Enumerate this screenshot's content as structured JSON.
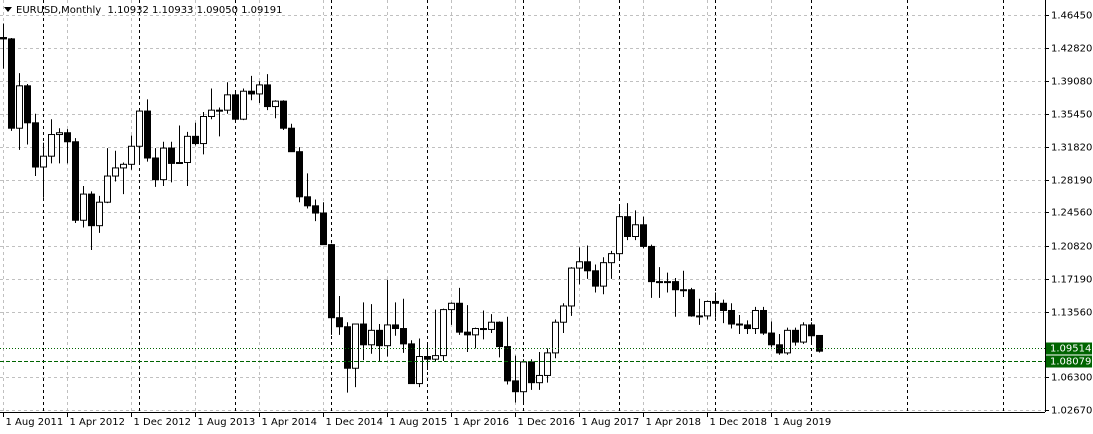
{
  "chart_data": {
    "type": "candlestick",
    "title": "EURUSD,Monthly  1.10932 1.10933 1.09050 1.09191",
    "categories": [
      "1 Aug 2011",
      null,
      null,
      null,
      null,
      null,
      null,
      null,
      "1 Apr 2012",
      null,
      null,
      null,
      null,
      null,
      null,
      null,
      "1 Dec 2012",
      null,
      null,
      null,
      null,
      null,
      null,
      null,
      "1 Aug 2013",
      null,
      null,
      null,
      null,
      null,
      null,
      null,
      "1 Apr 2014",
      null,
      null,
      null,
      null,
      null,
      null,
      null,
      "1 Dec 2014",
      null,
      null,
      null,
      null,
      null,
      null,
      null,
      "1 Aug 2015",
      null,
      null,
      null,
      null,
      null,
      null,
      null,
      "1 Apr 2016",
      null,
      null,
      null,
      null,
      null,
      null,
      null,
      "1 Dec 2016",
      null,
      null,
      null,
      null,
      null,
      null,
      null,
      "1 Aug 2017",
      null,
      null,
      null,
      null,
      null,
      null,
      null,
      "1 Apr 2018",
      null,
      null,
      null,
      null,
      null,
      null,
      null,
      "1 Dec 2018",
      null,
      null,
      null,
      null,
      null,
      null,
      null,
      "1 Aug 2019",
      null,
      null,
      null,
      null,
      null,
      null
    ],
    "open": [
      1.4395,
      1.438,
      1.339,
      1.386,
      1.345,
      1.296,
      1.308,
      1.332,
      1.334,
      1.324,
      1.237,
      1.266,
      1.231,
      1.257,
      1.286,
      1.295,
      1.299,
      1.319,
      1.358,
      1.306,
      1.282,
      1.317,
      1.3,
      1.301,
      1.33,
      1.322,
      1.352,
      1.359,
      1.359,
      1.376,
      1.349,
      1.38,
      1.377,
      1.387,
      1.363,
      1.369,
      1.339,
      1.313,
      1.263,
      1.253,
      1.245,
      1.21,
      1.129,
      1.119,
      1.073,
      1.122,
      1.099,
      1.115,
      1.098,
      1.121,
      1.117,
      1.1,
      1.056,
      1.086,
      1.083,
      1.087,
      1.138,
      1.145,
      1.113,
      1.11,
      1.117,
      1.116,
      1.124,
      1.097,
      1.059,
      1.047,
      1.08,
      1.057,
      1.065,
      1.09,
      1.124,
      1.142,
      1.184,
      1.191,
      1.181,
      1.164,
      1.19,
      1.2,
      1.241,
      1.219,
      1.232,
      1.208,
      1.169,
      1.168,
      1.169,
      1.16,
      1.16,
      1.131,
      1.131,
      1.147,
      1.145,
      1.137,
      1.122,
      1.121,
      1.117,
      1.137,
      1.112,
      1.099,
      1.09,
      1.115,
      1.102,
      1.121,
      1.10932
    ],
    "high": [
      1.455,
      1.439,
      1.4,
      1.388,
      1.355,
      1.323,
      1.349,
      1.339,
      1.338,
      1.328,
      1.275,
      1.269,
      1.264,
      1.317,
      1.314,
      1.301,
      1.331,
      1.36,
      1.371,
      1.317,
      1.324,
      1.324,
      1.342,
      1.335,
      1.345,
      1.357,
      1.383,
      1.362,
      1.39,
      1.378,
      1.383,
      1.397,
      1.391,
      1.399,
      1.37,
      1.37,
      1.344,
      1.318,
      1.289,
      1.26,
      1.257,
      1.211,
      1.153,
      1.124,
      1.122,
      1.146,
      1.144,
      1.122,
      1.171,
      1.146,
      1.15,
      1.104,
      1.106,
      1.099,
      1.138,
      1.139,
      1.146,
      1.162,
      1.143,
      1.118,
      1.137,
      1.133,
      1.125,
      1.13,
      1.087,
      1.083,
      1.083,
      1.091,
      1.095,
      1.127,
      1.145,
      1.185,
      1.207,
      1.209,
      1.188,
      1.196,
      1.203,
      1.254,
      1.256,
      1.248,
      1.241,
      1.21,
      1.185,
      1.179,
      1.173,
      1.181,
      1.162,
      1.15,
      1.148,
      1.157,
      1.149,
      1.145,
      1.132,
      1.126,
      1.141,
      1.141,
      1.125,
      1.111,
      1.118,
      1.118,
      1.124,
      1.124,
      1.10933
    ],
    "low": [
      1.405,
      1.336,
      1.315,
      1.321,
      1.286,
      1.262,
      1.3,
      1.3,
      1.3,
      1.234,
      1.229,
      1.204,
      1.223,
      1.256,
      1.28,
      1.266,
      1.293,
      1.3,
      1.302,
      1.274,
      1.275,
      1.279,
      1.3,
      1.275,
      1.32,
      1.31,
      1.349,
      1.33,
      1.355,
      1.348,
      1.348,
      1.37,
      1.367,
      1.359,
      1.35,
      1.337,
      1.313,
      1.257,
      1.25,
      1.236,
      1.21,
      1.11,
      1.11,
      1.046,
      1.052,
      1.082,
      1.089,
      1.081,
      1.086,
      1.109,
      1.09,
      1.056,
      1.052,
      1.071,
      1.081,
      1.081,
      1.121,
      1.11,
      1.091,
      1.095,
      1.105,
      1.112,
      1.085,
      1.055,
      1.035,
      1.034,
      1.049,
      1.049,
      1.057,
      1.084,
      1.112,
      1.131,
      1.166,
      1.172,
      1.157,
      1.155,
      1.172,
      1.192,
      1.215,
      1.215,
      1.206,
      1.151,
      1.151,
      1.157,
      1.13,
      1.152,
      1.13,
      1.121,
      1.127,
      1.129,
      1.123,
      1.117,
      1.111,
      1.111,
      1.111,
      1.11,
      1.096,
      1.088,
      1.088,
      1.098,
      1.1,
      1.099,
      1.0905
    ],
    "close": [
      1.438,
      1.339,
      1.386,
      1.345,
      1.296,
      1.308,
      1.332,
      1.334,
      1.324,
      1.237,
      1.266,
      1.231,
      1.257,
      1.286,
      1.295,
      1.299,
      1.319,
      1.358,
      1.306,
      1.282,
      1.317,
      1.3,
      1.301,
      1.33,
      1.322,
      1.352,
      1.359,
      1.359,
      1.376,
      1.349,
      1.38,
      1.377,
      1.387,
      1.363,
      1.369,
      1.339,
      1.313,
      1.263,
      1.253,
      1.245,
      1.21,
      1.129,
      1.119,
      1.073,
      1.122,
      1.099,
      1.115,
      1.098,
      1.121,
      1.117,
      1.1,
      1.056,
      1.086,
      1.083,
      1.087,
      1.138,
      1.145,
      1.113,
      1.11,
      1.117,
      1.116,
      1.124,
      1.097,
      1.059,
      1.047,
      1.08,
      1.057,
      1.065,
      1.09,
      1.124,
      1.142,
      1.184,
      1.191,
      1.181,
      1.164,
      1.19,
      1.2,
      1.241,
      1.219,
      1.232,
      1.208,
      1.169,
      1.168,
      1.169,
      1.16,
      1.16,
      1.131,
      1.131,
      1.147,
      1.145,
      1.137,
      1.122,
      1.121,
      1.117,
      1.137,
      1.112,
      1.099,
      1.09,
      1.115,
      1.102,
      1.121,
      1.109,
      1.09191
    ],
    "ylim": [
      1.0245,
      1.4811
    ],
    "yticks": [
      {
        "value": 1.4645,
        "label": "1.46450"
      },
      {
        "value": 1.4282,
        "label": "1.42820"
      },
      {
        "value": 1.3908,
        "label": "1.39080"
      },
      {
        "value": 1.3545,
        "label": "1.35450"
      },
      {
        "value": 1.3182,
        "label": "1.31820"
      },
      {
        "value": 1.2819,
        "label": "1.28190"
      },
      {
        "value": 1.2456,
        "label": "1.24560"
      },
      {
        "value": 1.2082,
        "label": "1.20820"
      },
      {
        "value": 1.1719,
        "label": "1.17190"
      },
      {
        "value": 1.1356,
        "label": "1.13560"
      },
      {
        "value": 1.063,
        "label": "1.06300"
      },
      {
        "value": 1.0267,
        "label": "1.02670"
      }
    ],
    "levels": [
      {
        "value": 1.09514,
        "label": "1.09514"
      },
      {
        "value": 1.08079,
        "label": "1.08079"
      }
    ],
    "grid": true,
    "bull_color": "#ffffff",
    "bear_color": "#000000",
    "level_color": "#006400"
  }
}
